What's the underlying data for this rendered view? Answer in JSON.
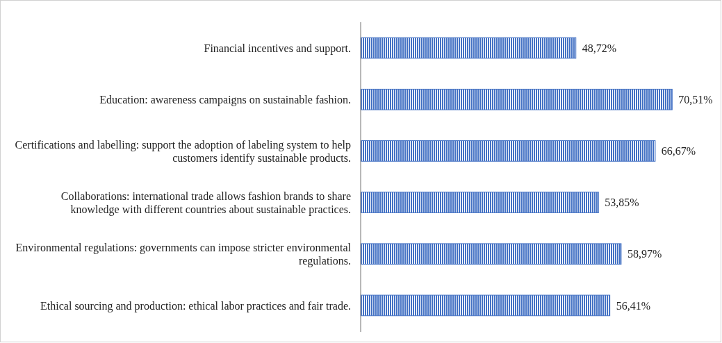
{
  "chart_data": {
    "type": "bar",
    "orientation": "horizontal",
    "categories": [
      "Financial incentives and support.",
      "Education: awareness campaigns on sustainable fashion.",
      "Certifications and labelling: support the adoption of labeling system to help customers identify sustainable products.",
      "Collaborations: international trade allows fashion brands to share knowledge with different countries about sustainable practices.",
      "Environmental regulations: governments can impose stricter environmental regulations.",
      "Ethical sourcing and production: ethical labor practices and fair trade."
    ],
    "values": [
      48.72,
      70.51,
      66.67,
      53.85,
      58.97,
      56.41
    ],
    "value_labels": [
      "48,72%",
      "70,51%",
      "66,67%",
      "53,85%",
      "58,97%",
      "56,41%"
    ],
    "color": "#4472c4"
  }
}
